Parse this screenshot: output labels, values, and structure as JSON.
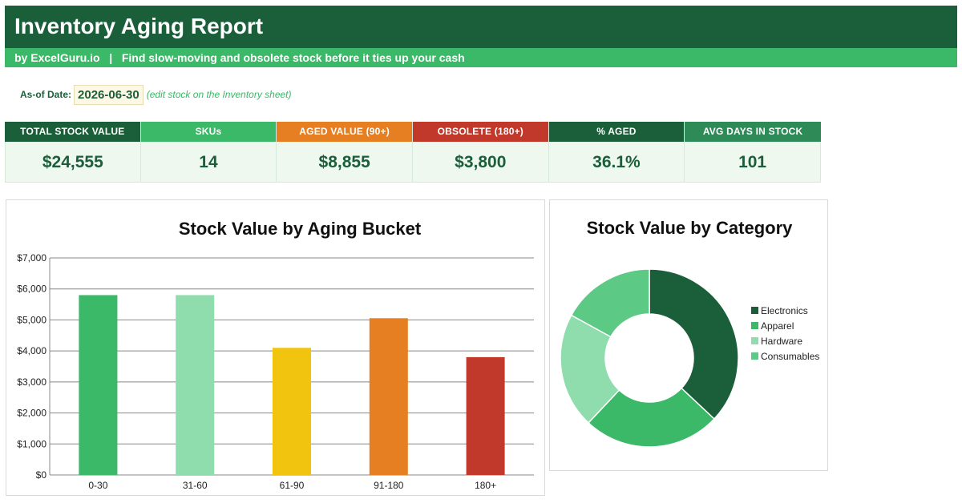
{
  "header": {
    "title": "Inventory Aging Report",
    "subtitle": "by ExcelGuru.io   |   Find slow-moving and obsolete stock before it ties up your cash"
  },
  "asof": {
    "label": "As-of Date:",
    "date": "2026-06-30",
    "note": "(edit stock on the Inventory sheet)"
  },
  "kpis": [
    {
      "label": "TOTAL STOCK VALUE",
      "value": "$24,555",
      "color": "#1b5e3a"
    },
    {
      "label": "SKUs",
      "value": "14",
      "color": "#3bb868"
    },
    {
      "label": "AGED VALUE (90+)",
      "value": "$8,855",
      "color": "#e67e22"
    },
    {
      "label": "OBSOLETE (180+)",
      "value": "$3,800",
      "color": "#c0392b"
    },
    {
      "label": "% AGED",
      "value": "36.1%",
      "color": "#1b5e3a"
    },
    {
      "label": "AVG DAYS IN STOCK",
      "value": "101",
      "color": "#2e8b57"
    }
  ],
  "chart_data": [
    {
      "type": "bar",
      "title": "Stock Value by Aging Bucket",
      "xlabel": "",
      "ylabel": "",
      "categories": [
        "0-30",
        "31-60",
        "61-90",
        "91-180",
        "180+"
      ],
      "values": [
        5800,
        5800,
        4100,
        5055,
        3800
      ],
      "colors": [
        "#3bb868",
        "#8fdcac",
        "#f1c40f",
        "#e67e22",
        "#c0392b"
      ],
      "ylim": [
        0,
        7000
      ],
      "yticks": [
        "$0",
        "$1,000",
        "$2,000",
        "$3,000",
        "$4,000",
        "$5,000",
        "$6,000",
        "$7,000"
      ],
      "grid": true,
      "legend": "none"
    },
    {
      "type": "pie",
      "title": "Stock Value by Category",
      "categories": [
        "Electronics",
        "Apparel",
        "Hardware",
        "Consumables"
      ],
      "values": [
        37,
        25,
        21,
        17
      ],
      "colors": [
        "#1b5e3a",
        "#3bb868",
        "#8fdcac",
        "#5cc985"
      ],
      "legend": "right"
    }
  ]
}
